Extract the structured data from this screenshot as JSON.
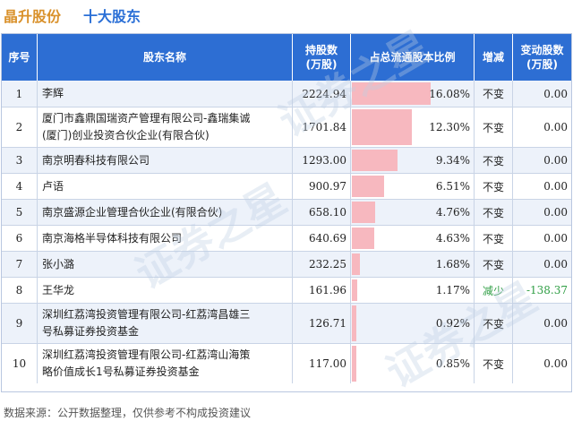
{
  "header": {
    "company": "晶升股份",
    "subtitle": "十大股东"
  },
  "columns": {
    "no": "序号",
    "name": "股东名称",
    "shares_line1": "持股数",
    "shares_line2": "(万股)",
    "ratio": "占总流通股本比例",
    "direction": "增减",
    "change_line1": "变动股数",
    "change_line2": "(万股)"
  },
  "colors": {
    "header_bg": "#2d6ed3",
    "bar": "#f7b8bf",
    "decrease": "#2f9e44",
    "company_title": "#d9912b",
    "subtitle": "#2a6fd6"
  },
  "chart_data": {
    "type": "table",
    "max_ratio": 16.08,
    "rows": [
      {
        "no": "1",
        "name_lines": [
          "李辉"
        ],
        "shares": "2224.94",
        "ratio": 16.08,
        "ratio_label": "16.08%",
        "direction": "不变",
        "change": "0.00"
      },
      {
        "no": "2",
        "name_lines": [
          "厦门市鑫鼎国瑞资产管理有限公司-鑫瑞集诚",
          "(厦门)创业投资合伙企业(有限合伙)"
        ],
        "shares": "1701.84",
        "ratio": 12.3,
        "ratio_label": "12.30%",
        "direction": "不变",
        "change": "0.00"
      },
      {
        "no": "3",
        "name_lines": [
          "南京明春科技有限公司"
        ],
        "shares": "1293.00",
        "ratio": 9.34,
        "ratio_label": "9.34%",
        "direction": "不变",
        "change": "0.00"
      },
      {
        "no": "4",
        "name_lines": [
          "卢语"
        ],
        "shares": "900.97",
        "ratio": 6.51,
        "ratio_label": "6.51%",
        "direction": "不变",
        "change": "0.00"
      },
      {
        "no": "5",
        "name_lines": [
          "南京盛源企业管理合伙企业(有限合伙)"
        ],
        "shares": "658.10",
        "ratio": 4.76,
        "ratio_label": "4.76%",
        "direction": "不变",
        "change": "0.00"
      },
      {
        "no": "6",
        "name_lines": [
          "南京海格半导体科技有限公司"
        ],
        "shares": "640.69",
        "ratio": 4.63,
        "ratio_label": "4.63%",
        "direction": "不变",
        "change": "0.00"
      },
      {
        "no": "7",
        "name_lines": [
          "张小潞"
        ],
        "shares": "232.25",
        "ratio": 1.68,
        "ratio_label": "1.68%",
        "direction": "不变",
        "change": "0.00"
      },
      {
        "no": "8",
        "name_lines": [
          "王华龙"
        ],
        "shares": "161.96",
        "ratio": 1.17,
        "ratio_label": "1.17%",
        "direction": "减少",
        "change": "-138.37"
      },
      {
        "no": "9",
        "name_lines": [
          "深圳红荔湾投资管理有限公司-红荔湾昌雄三",
          "号私募证券投资基金"
        ],
        "shares": "126.71",
        "ratio": 0.92,
        "ratio_label": "0.92%",
        "direction": "不变",
        "change": "0.00"
      },
      {
        "no": "10",
        "name_lines": [
          "深圳红荔湾投资管理有限公司-红荔湾山海策",
          "略价值成长1号私募证券投资基金"
        ],
        "shares": "117.00",
        "ratio": 0.85,
        "ratio_label": "0.85%",
        "direction": "不变",
        "change": "0.00"
      }
    ]
  },
  "watermark": "证券之星",
  "footnote": "数据来源：公开数据整理，仅供参考不构成投资建议"
}
